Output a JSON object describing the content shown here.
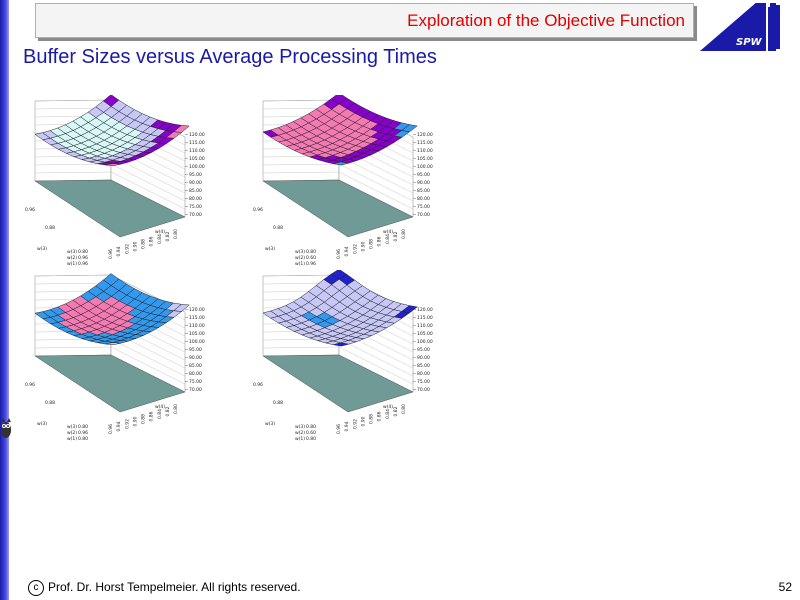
{
  "header": {
    "title": "Exploration of the Objective Function"
  },
  "logo": {
    "text": "SPW"
  },
  "page": {
    "title": "Buffer Sizes versus Average Processing Times",
    "number": "52"
  },
  "footer": {
    "copyright_symbol": "c",
    "text": "Prof. Dr. Horst Tempelmeier. All rights reserved."
  },
  "plots": [
    {
      "z_ticks": [
        "120.00",
        "115.00",
        "110.00",
        "105.00",
        "100.00",
        "95.00",
        "90.00",
        "85.00",
        "80.00",
        "75.00",
        "70.00"
      ],
      "x_ticks": [
        "0.96",
        "0.94",
        "0.92",
        "0.90",
        "0.88",
        "0.86",
        "0.84",
        "0.82",
        "0.80"
      ],
      "x_label": "w(4)",
      "y_ticks": [
        "0.96",
        "0.88"
      ],
      "y_label": "w(3)",
      "fixed": [
        "0.80",
        "0.96",
        "0.96"
      ],
      "fixed_labels": [
        "w(3)",
        "w(2)",
        "w(1)"
      ],
      "color_bands": [
        "#ffe8b0",
        "#d8f8f8",
        "#c8c8f8",
        "#8800cc",
        "#f47ab4",
        "#3399ee"
      ]
    },
    {
      "z_ticks": [
        "120.00",
        "115.00",
        "110.00",
        "105.00",
        "100.00",
        "95.00",
        "90.00",
        "85.00",
        "80.00",
        "75.00",
        "70.00"
      ],
      "x_ticks": [
        "0.96",
        "0.94",
        "0.92",
        "0.90",
        "0.88",
        "0.86",
        "0.84",
        "0.82",
        "0.80"
      ],
      "x_label": "w(4)",
      "y_ticks": [
        "0.96",
        "0.88"
      ],
      "y_label": "w(3)",
      "fixed": [
        "0.80",
        "0.60",
        "0.96"
      ],
      "fixed_labels": [
        "w(3)",
        "w(2)",
        "w(1)"
      ],
      "color_bands": [
        "#d8f8f8",
        "#8800cc",
        "#f47ab4",
        "#8800cc",
        "#3399ee",
        "#3399ee"
      ]
    },
    {
      "z_ticks": [
        "120.00",
        "115.00",
        "110.00",
        "105.00",
        "100.00",
        "95.00",
        "90.00",
        "85.00",
        "80.00",
        "75.00",
        "70.00"
      ],
      "x_ticks": [
        "0.96",
        "0.94",
        "0.92",
        "0.90",
        "0.88",
        "0.86",
        "0.84",
        "0.82",
        "0.80"
      ],
      "x_label": "w(4)",
      "y_ticks": [
        "0.96",
        "0.88"
      ],
      "y_label": "w(3)",
      "fixed": [
        "0.80",
        "0.96",
        "0.80"
      ],
      "fixed_labels": [
        "w(3)",
        "w(2)",
        "w(1)"
      ],
      "color_bands": [
        "#f47ab4",
        "#3399ee",
        "#3399ee",
        "#c8c8f8",
        "#2222cc",
        "#e040e0"
      ]
    },
    {
      "z_ticks": [
        "120.00",
        "115.00",
        "110.00",
        "105.00",
        "100.00",
        "95.00",
        "90.00",
        "85.00",
        "80.00",
        "75.00",
        "70.00"
      ],
      "x_ticks": [
        "0.96",
        "0.94",
        "0.92",
        "0.90",
        "0.88",
        "0.86",
        "0.84",
        "0.82",
        "0.80"
      ],
      "x_label": "w(4)",
      "y_ticks": [
        "0.96",
        "0.88"
      ],
      "y_label": "w(3)",
      "fixed": [
        "0.80",
        "0.60",
        "0.80"
      ],
      "fixed_labels": [
        "w(3)",
        "w(2)",
        "w(1)"
      ],
      "color_bands": [
        "#3399ee",
        "#c8c8f8",
        "#c8c8f8",
        "#2222cc",
        "#2222cc",
        "#e040e0"
      ]
    }
  ]
}
